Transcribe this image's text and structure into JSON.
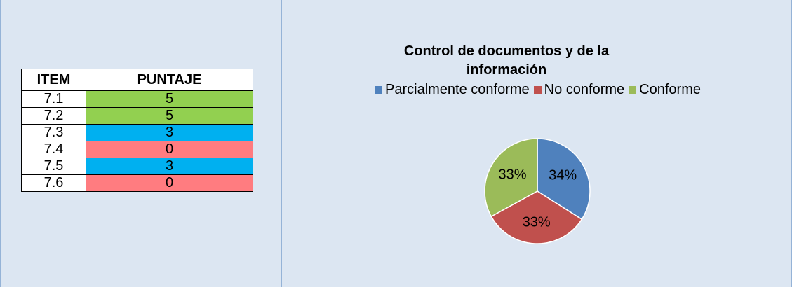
{
  "table": {
    "header": [
      "ITEM",
      "PUNTAJE"
    ],
    "rows": [
      [
        "7.1",
        "5"
      ],
      [
        "7.2",
        "5"
      ],
      [
        "7.3",
        "3"
      ],
      [
        "7.4",
        "0"
      ],
      [
        "7.5",
        "3"
      ],
      [
        "7.6",
        "0"
      ]
    ],
    "row_colors": [
      "#92d050",
      "#92d050",
      "#00b0f0",
      "#ff7c80",
      "#00b0f0",
      "#ff7c80"
    ]
  },
  "chart_data": {
    "type": "pie",
    "title": "Control de documentos y de la información",
    "categories": [
      "Parcialmente conforme",
      "No conforme",
      "Conforme"
    ],
    "values": [
      34,
      33,
      33
    ],
    "value_labels": [
      "34%",
      "33%",
      "33%"
    ],
    "colors": [
      "#4f81bd",
      "#c0504d",
      "#9bbb59"
    ]
  }
}
